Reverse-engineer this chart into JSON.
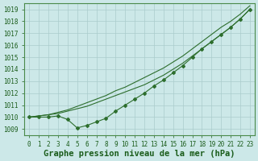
{
  "title": "Graphe pression niveau de la mer (hPa)",
  "bg_color": "#cce8e8",
  "grid_color": "#aacccc",
  "line_color": "#2d6e2d",
  "marker_color": "#2d6e2d",
  "ylim": [
    1008.5,
    1019.5
  ],
  "xlim": [
    -0.5,
    23.5
  ],
  "yticks": [
    1009,
    1010,
    1011,
    1012,
    1013,
    1014,
    1015,
    1016,
    1017,
    1018,
    1019
  ],
  "xticks": [
    0,
    1,
    2,
    3,
    4,
    5,
    6,
    7,
    8,
    9,
    10,
    11,
    12,
    13,
    14,
    15,
    16,
    17,
    18,
    19,
    20,
    21,
    22,
    23
  ],
  "series": [
    [
      1010.0,
      1010.1,
      1010.2,
      1010.3,
      1010.5,
      1010.7,
      1010.9,
      1011.2,
      1011.5,
      1011.8,
      1012.1,
      1012.4,
      1012.7,
      1013.1,
      1013.5,
      1014.0,
      1014.5,
      1015.1,
      1015.7,
      1016.3,
      1016.9,
      1017.5,
      1018.2,
      1019.0
    ],
    [
      1010.0,
      1010.0,
      1010.0,
      1010.1,
      1009.8,
      1009.1,
      1009.3,
      1009.6,
      1009.9,
      1010.5,
      1011.0,
      1011.5,
      1012.0,
      1012.6,
      1013.1,
      1013.7,
      1014.3,
      1015.0,
      1015.7,
      1016.3,
      1016.9,
      1017.5,
      1018.2,
      1019.0
    ],
    [
      1010.0,
      1010.1,
      1010.2,
      1010.4,
      1010.6,
      1010.9,
      1011.2,
      1011.5,
      1011.8,
      1012.2,
      1012.5,
      1012.9,
      1013.3,
      1013.7,
      1014.1,
      1014.6,
      1015.1,
      1015.7,
      1016.3,
      1016.9,
      1017.5,
      1018.0,
      1018.6,
      1019.3
    ]
  ],
  "title_fontsize": 7.5,
  "tick_fontsize": 5.5,
  "title_color": "#1a5c1a",
  "tick_color": "#1a5c1a",
  "axis_color": "#4a8a4a"
}
